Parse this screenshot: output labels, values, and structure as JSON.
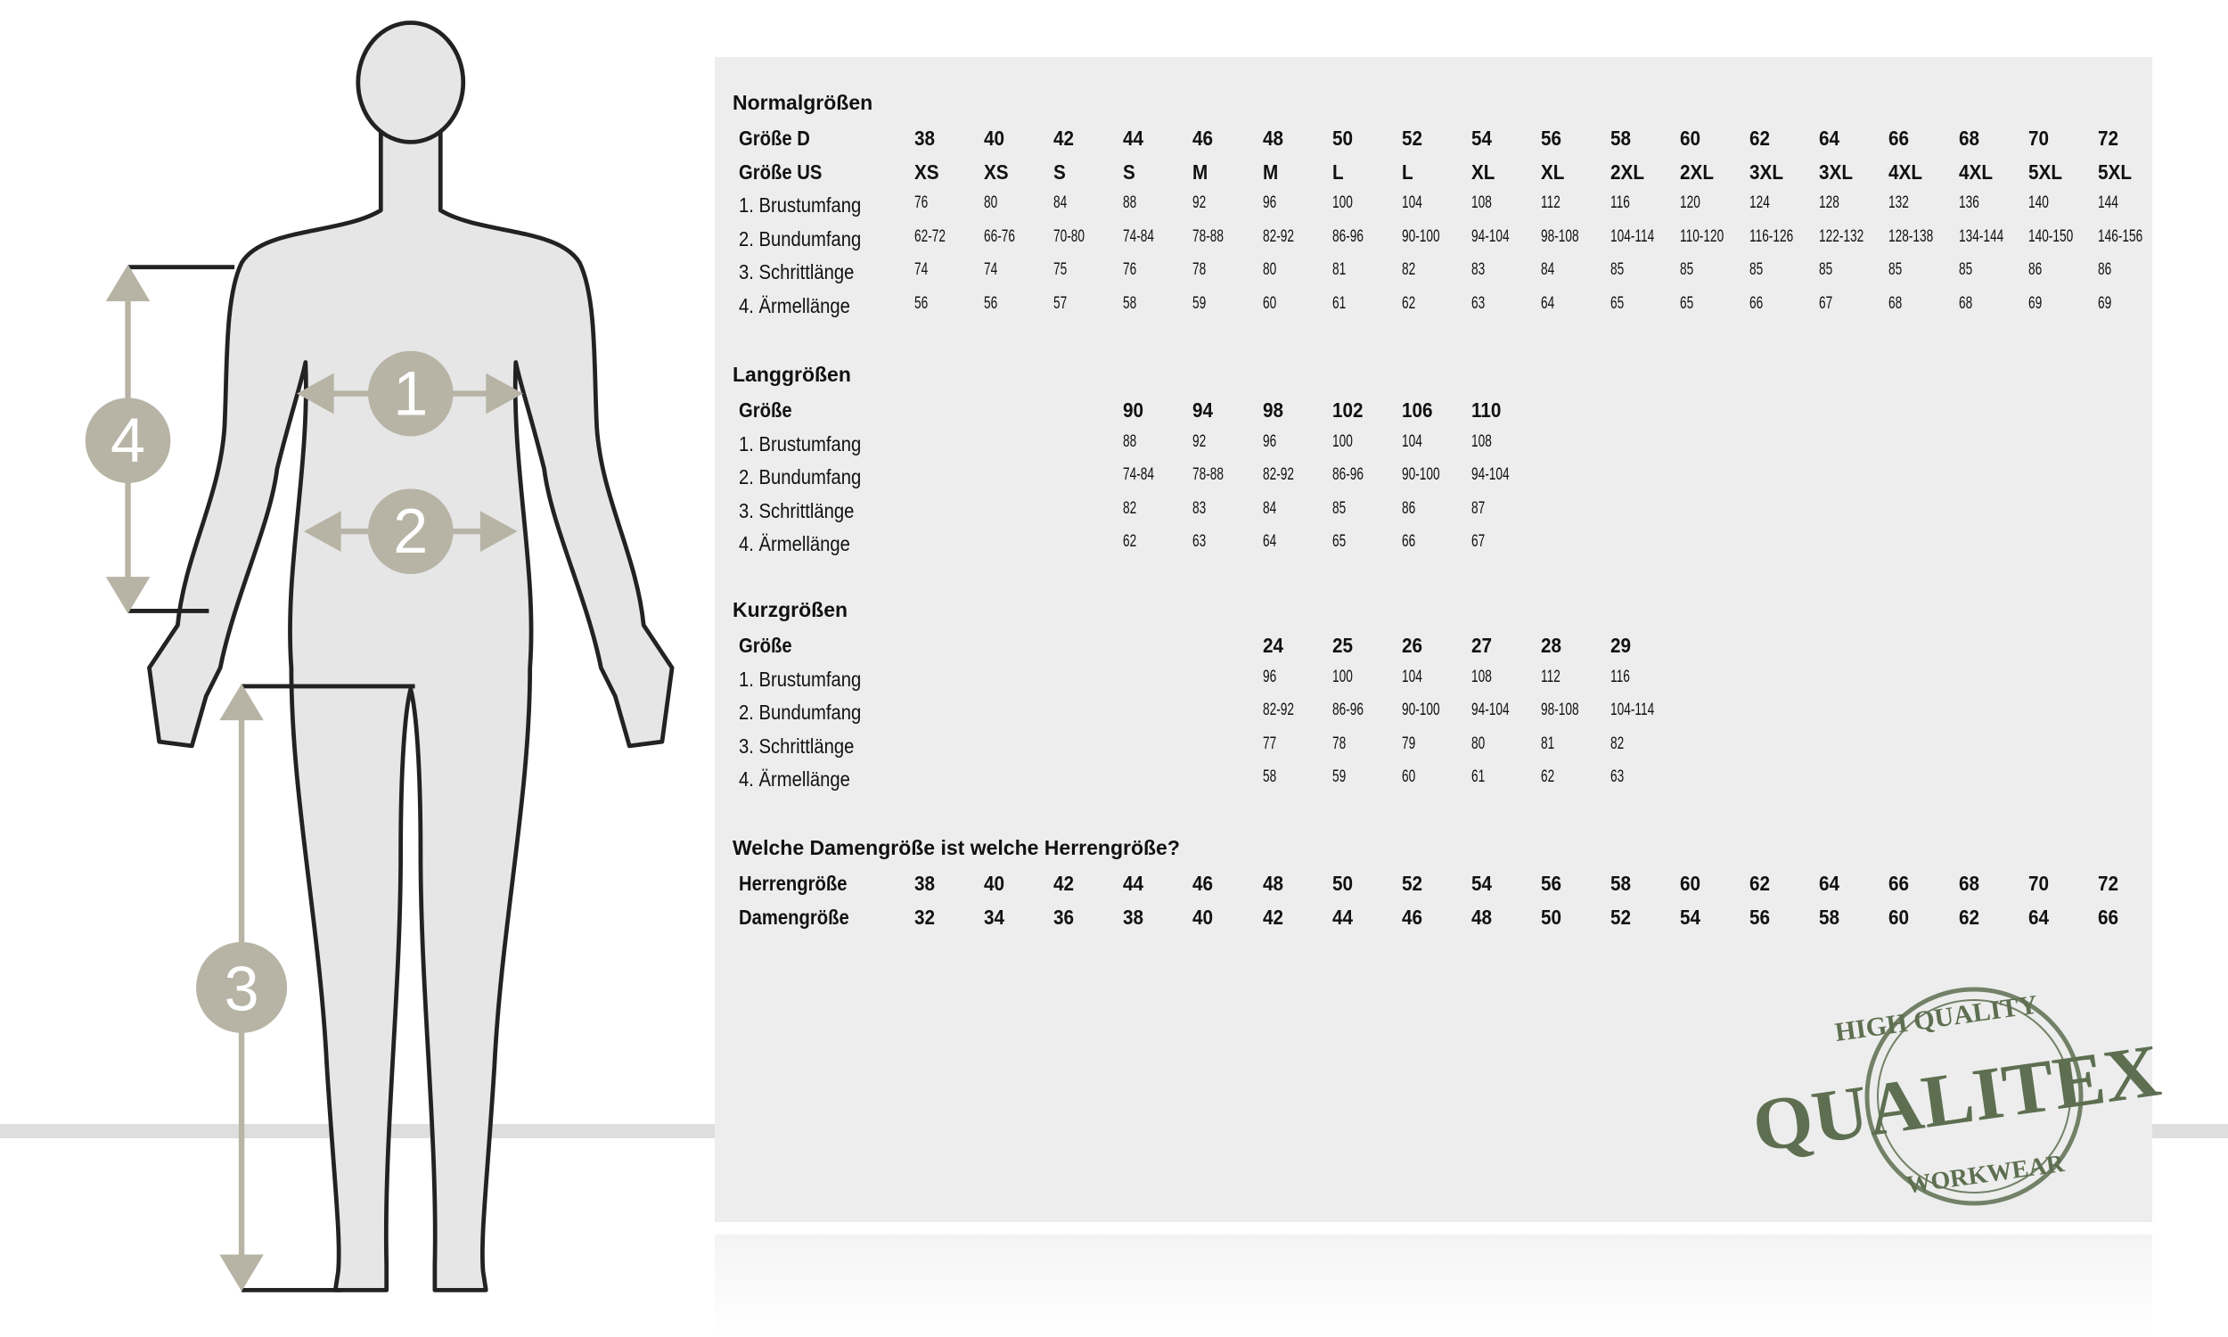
{
  "colors": {
    "panel": "#ededed",
    "figure_fill": "#e6e6e6",
    "outline": "#222222",
    "marker": "#b7b4a6",
    "stamp": "#5d6f50"
  },
  "figure": {
    "markers": [
      "1",
      "2",
      "3",
      "4"
    ]
  },
  "normal": {
    "title": "Normalgrößen",
    "rows": [
      {
        "label": "Größe D",
        "bold": true,
        "values": [
          "38",
          "40",
          "42",
          "44",
          "46",
          "48",
          "50",
          "52",
          "54",
          "56",
          "58",
          "60",
          "62",
          "64",
          "66",
          "68",
          "70",
          "72"
        ]
      },
      {
        "label": "Größe US",
        "bold": true,
        "values": [
          "XS",
          "XS",
          "S",
          "S",
          "M",
          "M",
          "L",
          "L",
          "XL",
          "XL",
          "2XL",
          "2XL",
          "3XL",
          "3XL",
          "4XL",
          "4XL",
          "5XL",
          "5XL"
        ]
      },
      {
        "label": "1. Brustumfang",
        "values": [
          "76",
          "80",
          "84",
          "88",
          "92",
          "96",
          "100",
          "104",
          "108",
          "112",
          "116",
          "120",
          "124",
          "128",
          "132",
          "136",
          "140",
          "144"
        ]
      },
      {
        "label": "2. Bundumfang",
        "values": [
          "62-72",
          "66-76",
          "70-80",
          "74-84",
          "78-88",
          "82-92",
          "86-96",
          "90-100",
          "94-104",
          "98-108",
          "104-114",
          "110-120",
          "116-126",
          "122-132",
          "128-138",
          "134-144",
          "140-150",
          "146-156"
        ]
      },
      {
        "label": "3. Schrittlänge",
        "values": [
          "74",
          "74",
          "75",
          "76",
          "78",
          "80",
          "81",
          "82",
          "83",
          "84",
          "85",
          "85",
          "85",
          "85",
          "85",
          "85",
          "86",
          "86"
        ]
      },
      {
        "label": "4. Ärmellänge",
        "values": [
          "56",
          "56",
          "57",
          "58",
          "59",
          "60",
          "61",
          "62",
          "63",
          "64",
          "65",
          "65",
          "66",
          "67",
          "68",
          "68",
          "69",
          "69"
        ]
      }
    ]
  },
  "lang": {
    "title": "Langgrößen",
    "rows": [
      {
        "label": "Größe",
        "bold": true,
        "values": [
          "90",
          "94",
          "98",
          "102",
          "106",
          "110"
        ]
      },
      {
        "label": "1. Brustumfang",
        "values": [
          "88",
          "92",
          "96",
          "100",
          "104",
          "108"
        ]
      },
      {
        "label": "2. Bundumfang",
        "values": [
          "74-84",
          "78-88",
          "82-92",
          "86-96",
          "90-100",
          "94-104"
        ]
      },
      {
        "label": "3. Schrittlänge",
        "values": [
          "82",
          "83",
          "84",
          "85",
          "86",
          "87"
        ]
      },
      {
        "label": "4. Ärmellänge",
        "values": [
          "62",
          "63",
          "64",
          "65",
          "66",
          "67"
        ]
      }
    ]
  },
  "kurz": {
    "title": "Kurzgrößen",
    "rows": [
      {
        "label": "Größe",
        "bold": true,
        "values": [
          "24",
          "25",
          "26",
          "27",
          "28",
          "29"
        ]
      },
      {
        "label": "1. Brustumfang",
        "values": [
          "96",
          "100",
          "104",
          "108",
          "112",
          "116"
        ]
      },
      {
        "label": "2. Bundumfang",
        "values": [
          "82-92",
          "86-96",
          "90-100",
          "94-104",
          "98-108",
          "104-114"
        ]
      },
      {
        "label": "3. Schrittlänge",
        "values": [
          "77",
          "78",
          "79",
          "80",
          "81",
          "82"
        ]
      },
      {
        "label": "4. Ärmellänge",
        "values": [
          "58",
          "59",
          "60",
          "61",
          "62",
          "63"
        ]
      }
    ]
  },
  "damen": {
    "title": "Welche Damengröße ist welche Herrengröße?",
    "rows": [
      {
        "label": "Herrengröße",
        "bold": true,
        "values": [
          "38",
          "40",
          "42",
          "44",
          "46",
          "48",
          "50",
          "52",
          "54",
          "56",
          "58",
          "60",
          "62",
          "64",
          "66",
          "68",
          "70",
          "72"
        ]
      },
      {
        "label": "Damengröße",
        "bold": true,
        "values": [
          "32",
          "34",
          "36",
          "38",
          "40",
          "42",
          "44",
          "46",
          "48",
          "50",
          "52",
          "54",
          "56",
          "58",
          "60",
          "62",
          "64",
          "66"
        ]
      }
    ]
  },
  "stamp": {
    "top": "HIGH QUALITY",
    "brand": "QUALITEX",
    "bottom": "WORKWEAR"
  }
}
